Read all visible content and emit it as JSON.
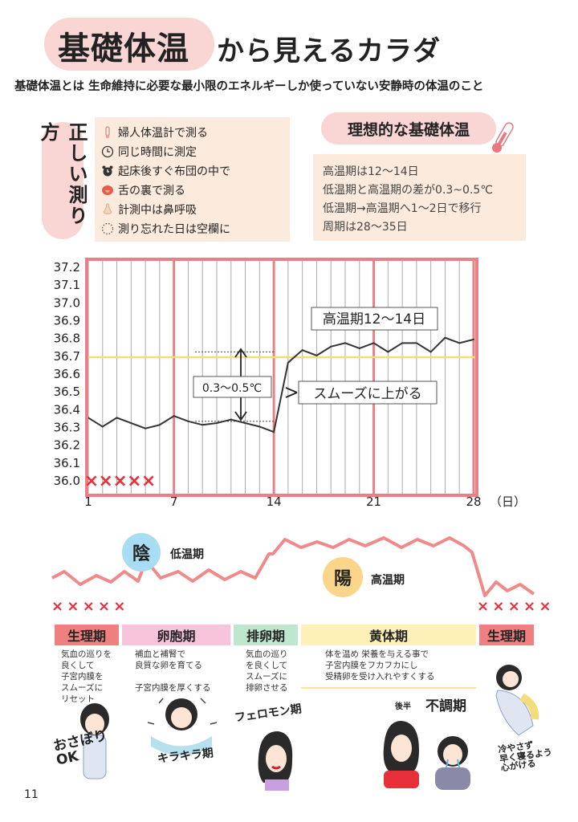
{
  "title": {
    "highlight": "基礎体温",
    "rest": "から見えるカラダ"
  },
  "subtitle": "基礎体温とは 生命維持に必要な最小限のエネルギーしか使っていない安静時の体温のこと",
  "howto": {
    "heading": "正しい測り方",
    "items": [
      {
        "icon": "thermometer-icon",
        "text": "婦人体温計で測る"
      },
      {
        "icon": "clock-icon",
        "text": "同じ時間に測定"
      },
      {
        "icon": "alarm-icon",
        "text": "起床後すぐ布団の中で"
      },
      {
        "icon": "tongue-icon",
        "text": "舌の裏で測る"
      },
      {
        "icon": "nose-icon",
        "text": "計測中は鼻呼吸"
      },
      {
        "icon": "dotted-circle-icon",
        "text": "測り忘れた日は空欄に"
      }
    ]
  },
  "ideal": {
    "heading": "理想的な基礎体温",
    "items": [
      "高温期は12〜14日",
      "低温期と高温期の差が0.3~0.5℃",
      "低温期→高温期へ1〜2日で移行",
      "周期は28〜35日"
    ]
  },
  "chart_data": {
    "type": "line",
    "x": [
      1,
      2,
      3,
      4,
      5,
      6,
      7,
      8,
      9,
      10,
      11,
      12,
      13,
      14,
      15,
      16,
      17,
      18,
      19,
      20,
      21,
      22,
      23,
      24,
      25,
      26,
      27,
      28
    ],
    "series": [
      {
        "values": [
          36.35,
          36.3,
          36.35,
          36.32,
          36.29,
          36.31,
          36.36,
          36.33,
          36.31,
          36.32,
          36.34,
          36.32,
          36.3,
          36.27,
          36.66,
          36.73,
          36.7,
          36.75,
          36.77,
          36.74,
          36.77,
          36.72,
          36.77,
          36.77,
          36.72,
          36.8,
          36.77,
          36.79
        ]
      }
    ],
    "xticks": [
      1,
      7,
      14,
      21,
      28
    ],
    "xtick_labels": [
      "1",
      "7",
      "14",
      "21",
      "28"
    ],
    "x_unit": "（日）",
    "yticks": [
      "37.2",
      "37.1",
      "37.0",
      "36.9",
      "36.8",
      "36.7",
      "36.6",
      "36.5",
      "36.4",
      "36.3",
      "36.2",
      "36.1",
      "36.0"
    ],
    "ylim": [
      36.0,
      37.2
    ],
    "reference_line": 36.69,
    "reference_color": "#f3dc7a",
    "line_color": "#333333",
    "grid_color": "#aaaaaa",
    "major_grid_color": "#e88088",
    "missing_days": [
      1,
      2,
      3,
      4,
      5
    ],
    "missing_marker": "×",
    "missing_color": "#e8303a",
    "annotations": {
      "high_phase": "高温期12〜14日",
      "difference": "0.3〜0.5℃",
      "smooth_rise": "スムーズに上がる"
    }
  },
  "cycle": {
    "yin": {
      "symbol": "陰",
      "label": "低温期",
      "color": "#a8dcf2"
    },
    "yang": {
      "symbol": "陽",
      "label": "高温期",
      "color": "#fbd58a"
    },
    "marks_left": "× × × × ×",
    "marks_right": "× × × × ×",
    "phases": [
      {
        "name": "生理期",
        "color": "#f08080",
        "desc": "気血の巡りを\n良くして\n子宮内膜を\nスムーズに\nリセット"
      },
      {
        "name": "卵胞期",
        "color": "#f7c4dc",
        "desc": "補血と補腎で\n良質な卵を育てる\n\n子宮内膜を厚くする"
      },
      {
        "name": "排卵期",
        "color": "#bfe6cf",
        "desc": "気血の巡り\nを良くして\nスムーズに\n排卵させる"
      },
      {
        "name": "黄体期",
        "color": "#fdf1b8",
        "desc": "体を温め 栄養を与える事で\n子宮内膜をフカフカにし\n受精卵を受け入れやすくする"
      },
      {
        "name": "生理期",
        "color": "#f08080",
        "desc": ""
      }
    ],
    "handwritten": {
      "period1": "おさぼり\nOK",
      "follicular": "キラキラ期",
      "ovulation": "フェロモン期",
      "luteal_prefix": "後半",
      "luteal": "不調期",
      "period2": "冷やさず\n早く寝るよう\n心がける"
    }
  },
  "page_number": "11"
}
